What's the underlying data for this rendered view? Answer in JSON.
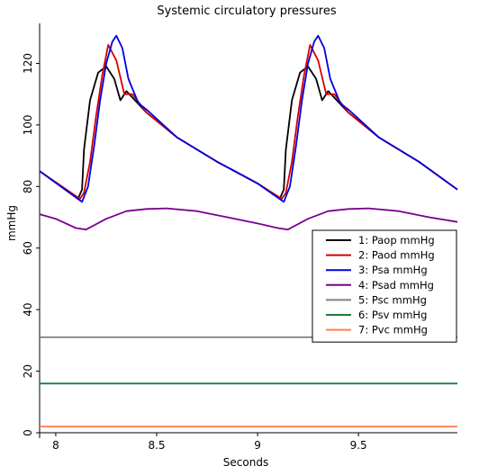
{
  "chart_data": {
    "type": "line",
    "title": "Systemic circulatory pressures",
    "xlabel": "Seconds",
    "ylabel": "mmHg",
    "xlim": [
      7.92,
      9.99
    ],
    "ylim": [
      0,
      133
    ],
    "grid": false,
    "legend_position": "right",
    "x_ticks": [
      {
        "value": 8,
        "label": "8"
      },
      {
        "value": 8.5,
        "label": "8.5"
      },
      {
        "value": 9,
        "label": "9"
      },
      {
        "value": 9.5,
        "label": "9.5"
      }
    ],
    "y_ticks": [
      {
        "value": 0,
        "label": "0"
      },
      {
        "value": 20,
        "label": "20"
      },
      {
        "value": 40,
        "label": "40"
      },
      {
        "value": 60,
        "label": "60"
      },
      {
        "value": 80,
        "label": "80"
      },
      {
        "value": 100,
        "label": "100"
      },
      {
        "value": 120,
        "label": "120"
      }
    ],
    "series": [
      {
        "name": "1: Paop mmHg",
        "color": "#000000",
        "x": [
          7.92,
          8.11,
          8.13,
          8.14,
          8.17,
          8.21,
          8.25,
          8.29,
          8.32,
          8.35,
          8.45,
          8.6,
          8.8,
          9.0,
          9.11,
          9.13,
          9.14,
          9.17,
          9.21,
          9.25,
          9.29,
          9.32,
          9.35,
          9.45,
          9.6,
          9.8,
          9.99
        ],
        "y": [
          85,
          76,
          79,
          92,
          108,
          117,
          119,
          115,
          108,
          111,
          104,
          96,
          88,
          81,
          76,
          79,
          92,
          108,
          117,
          119,
          115,
          108,
          111,
          104,
          96,
          88,
          79
        ]
      },
      {
        "name": "2: Paod mmHg",
        "color": "#d40000",
        "x": [
          7.92,
          8.12,
          8.14,
          8.17,
          8.2,
          8.23,
          8.26,
          8.3,
          8.34,
          8.38,
          8.45,
          8.6,
          8.8,
          9.0,
          9.12,
          9.14,
          9.17,
          9.2,
          9.23,
          9.26,
          9.3,
          9.34,
          9.38,
          9.45,
          9.6,
          9.8,
          9.99
        ],
        "y": [
          85,
          76,
          78,
          88,
          103,
          116,
          126,
          121,
          110,
          110,
          104,
          96,
          88,
          81,
          76,
          78,
          88,
          103,
          116,
          126,
          121,
          110,
          110,
          104,
          96,
          88,
          79
        ]
      },
      {
        "name": "3: Psa mmHg",
        "color": "#0000e0",
        "x": [
          7.92,
          8.13,
          8.16,
          8.19,
          8.22,
          8.25,
          8.28,
          8.3,
          8.33,
          8.36,
          8.41,
          8.45,
          8.6,
          8.8,
          9.0,
          9.13,
          9.16,
          9.19,
          9.22,
          9.25,
          9.28,
          9.3,
          9.33,
          9.36,
          9.41,
          9.45,
          9.6,
          9.8,
          9.99
        ],
        "y": [
          85,
          75,
          80,
          93,
          108,
          120,
          127,
          129,
          125,
          115,
          107,
          105,
          96,
          88,
          81,
          75,
          80,
          93,
          108,
          120,
          127,
          129,
          125,
          115,
          107,
          105,
          96,
          88,
          79
        ]
      },
      {
        "name": "4: Psad mmHg",
        "color": "#7a0090",
        "x": [
          7.92,
          8.0,
          8.1,
          8.15,
          8.25,
          8.35,
          8.45,
          8.55,
          8.7,
          8.85,
          9.0,
          9.1,
          9.15,
          9.25,
          9.35,
          9.45,
          9.55,
          9.7,
          9.85,
          9.99
        ],
        "y": [
          71,
          69.5,
          66.5,
          66,
          69.5,
          72,
          72.7,
          72.9,
          72,
          70,
          68,
          66.5,
          66,
          69.5,
          72,
          72.7,
          72.9,
          72,
          70,
          68.5
        ]
      },
      {
        "name": "5: Psc mmHg",
        "color": "#808080",
        "x": [
          7.92,
          9.99
        ],
        "y": [
          31,
          31
        ]
      },
      {
        "name": "6: Psv mmHg",
        "color": "#1a7a3a",
        "x": [
          7.92,
          9.99
        ],
        "y": [
          16,
          16
        ]
      },
      {
        "name": "7: Pvc mmHg",
        "color": "#ff7f50",
        "x": [
          7.92,
          9.99
        ],
        "y": [
          2,
          2
        ]
      }
    ]
  }
}
